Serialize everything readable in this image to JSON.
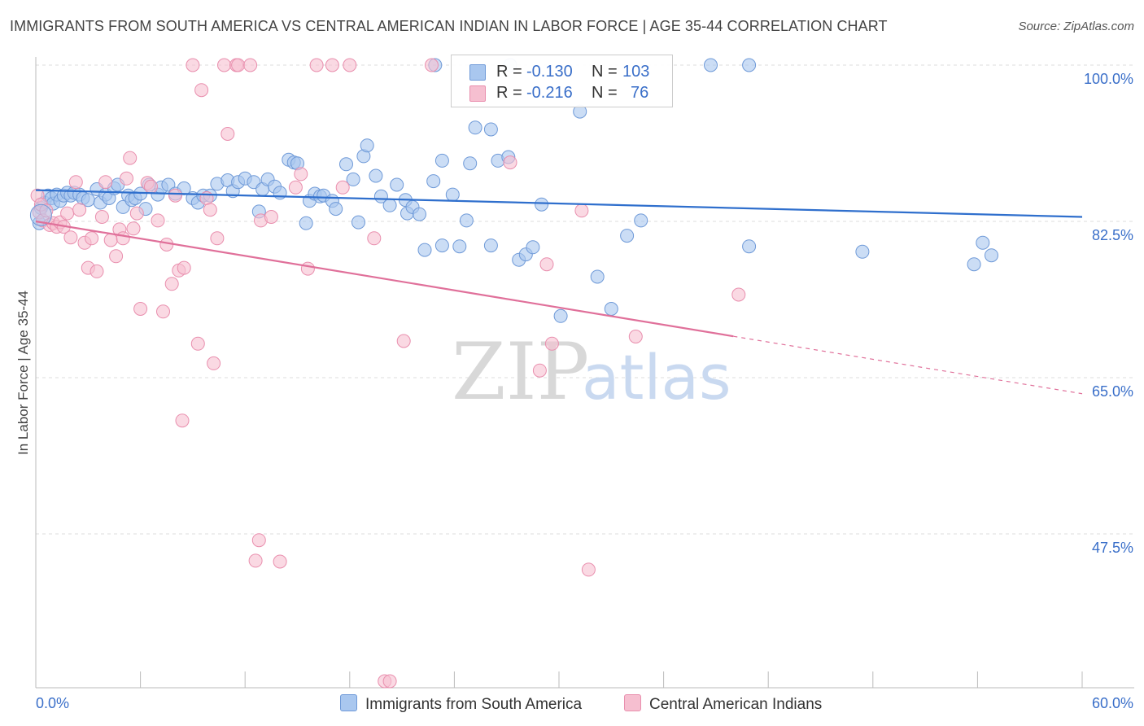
{
  "title": "IMMIGRANTS FROM SOUTH AMERICA VS CENTRAL AMERICAN INDIAN IN LABOR FORCE | AGE 35-44 CORRELATION CHART",
  "source": "Source: ZipAtlas.com",
  "legend": {
    "rows": [
      {
        "r_label": "R =",
        "r_value": "-0.130",
        "n_label": "N =",
        "n_value": "103"
      },
      {
        "r_label": "R =",
        "r_value": "-0.216",
        "n_label": "N =",
        "n_value": "76"
      }
    ]
  },
  "bottom_legend": [
    "Immigrants from South America",
    "Central American Indians"
  ],
  "colors": {
    "blue_fill": "#a9c7ef",
    "blue_stroke": "#6f9ad8",
    "blue_line": "#2f6fcd",
    "pink_fill": "#f6bfd0",
    "pink_stroke": "#e98fae",
    "pink_line": "#e0709a",
    "tick_text": "#3a6fc9",
    "grid": "#dddddd"
  },
  "chart_data": {
    "type": "scatter",
    "title": "IMMIGRANTS FROM SOUTH AMERICA VS CENTRAL AMERICAN INDIAN IN LABOR FORCE | AGE 35-44 CORRELATION CHART",
    "xlabel": "",
    "ylabel": "In Labor Force | Age 35-44",
    "xlim": [
      0,
      60
    ],
    "ylim": [
      29,
      101
    ],
    "x_tick_labels": [
      "0.0%",
      "60.0%"
    ],
    "y_ticks": [
      100,
      82.5,
      65,
      47.5
    ],
    "y_tick_labels": [
      "100.0%",
      "82.5%",
      "65.0%",
      "47.5%"
    ],
    "grid": true,
    "watermark": {
      "zip": "ZIP",
      "atlas": "atlas"
    },
    "series": [
      {
        "name": "Immigrants from South America",
        "r": -0.13,
        "n": 103,
        "trend": {
          "x0": 0,
          "y0": 86.0,
          "x1": 60,
          "y1": 83.0,
          "solid_to": 60
        },
        "points": [
          [
            0.2,
            82.3
          ],
          [
            0.3,
            84.0
          ],
          [
            0.5,
            84.6
          ],
          [
            0.7,
            85.4
          ],
          [
            0.9,
            85.1
          ],
          [
            1.0,
            84.5
          ],
          [
            1.2,
            85.5
          ],
          [
            1.4,
            84.8
          ],
          [
            1.6,
            85.4
          ],
          [
            1.8,
            85.7
          ],
          [
            2.0,
            85.4
          ],
          [
            2.2,
            85.7
          ],
          [
            2.5,
            85.5
          ],
          [
            2.7,
            85.1
          ],
          [
            3.0,
            84.9
          ],
          [
            3.5,
            86.1
          ],
          [
            3.7,
            84.6
          ],
          [
            4.0,
            85.5
          ],
          [
            4.2,
            85.1
          ],
          [
            4.5,
            86.2
          ],
          [
            4.7,
            86.6
          ],
          [
            5.0,
            84.1
          ],
          [
            5.3,
            85.4
          ],
          [
            5.5,
            84.9
          ],
          [
            5.7,
            85.1
          ],
          [
            6.0,
            85.6
          ],
          [
            6.3,
            83.9
          ],
          [
            6.5,
            86.6
          ],
          [
            7.0,
            85.5
          ],
          [
            7.2,
            86.3
          ],
          [
            7.6,
            86.6
          ],
          [
            8.0,
            85.6
          ],
          [
            8.5,
            86.2
          ],
          [
            9.0,
            85.1
          ],
          [
            9.3,
            84.6
          ],
          [
            9.6,
            85.4
          ],
          [
            10.0,
            85.4
          ],
          [
            10.4,
            86.7
          ],
          [
            11.0,
            87.1
          ],
          [
            11.3,
            85.9
          ],
          [
            11.6,
            86.9
          ],
          [
            12.0,
            87.3
          ],
          [
            12.5,
            86.9
          ],
          [
            12.8,
            83.6
          ],
          [
            13.0,
            86.1
          ],
          [
            13.3,
            87.2
          ],
          [
            13.7,
            86.4
          ],
          [
            14.0,
            85.7
          ],
          [
            14.5,
            89.4
          ],
          [
            14.8,
            89.1
          ],
          [
            15.0,
            89.0
          ],
          [
            15.5,
            82.3
          ],
          [
            15.7,
            84.8
          ],
          [
            16.0,
            85.6
          ],
          [
            16.3,
            85.3
          ],
          [
            16.5,
            85.4
          ],
          [
            17.0,
            84.8
          ],
          [
            17.2,
            83.9
          ],
          [
            17.8,
            88.9
          ],
          [
            18.2,
            87.2
          ],
          [
            18.5,
            82.4
          ],
          [
            18.8,
            89.8
          ],
          [
            19.0,
            91.0
          ],
          [
            19.5,
            87.6
          ],
          [
            19.8,
            85.3
          ],
          [
            20.3,
            84.3
          ],
          [
            20.7,
            86.6
          ],
          [
            21.2,
            84.9
          ],
          [
            21.3,
            83.4
          ],
          [
            21.6,
            84.1
          ],
          [
            22.0,
            83.3
          ],
          [
            22.3,
            79.3
          ],
          [
            22.8,
            87.0
          ],
          [
            22.9,
            100.0
          ],
          [
            23.3,
            79.8
          ],
          [
            23.3,
            89.3
          ],
          [
            23.9,
            85.5
          ],
          [
            24.3,
            79.7
          ],
          [
            24.7,
            82.6
          ],
          [
            24.9,
            89.0
          ],
          [
            25.2,
            93.0
          ],
          [
            26.1,
            92.8
          ],
          [
            26.1,
            79.8
          ],
          [
            26.5,
            89.3
          ],
          [
            27.1,
            89.7
          ],
          [
            27.2,
            100.0
          ],
          [
            27.7,
            78.2
          ],
          [
            28.1,
            78.8
          ],
          [
            28.5,
            79.6
          ],
          [
            29.0,
            84.4
          ],
          [
            30.1,
            71.9
          ],
          [
            31.2,
            94.8
          ],
          [
            32.2,
            76.3
          ],
          [
            33.0,
            72.7
          ],
          [
            33.9,
            80.9
          ],
          [
            34.7,
            82.6
          ],
          [
            38.7,
            100.0
          ],
          [
            40.9,
            100.0
          ],
          [
            40.9,
            79.7
          ],
          [
            47.4,
            79.1
          ],
          [
            53.8,
            77.7
          ],
          [
            54.3,
            80.1
          ],
          [
            54.8,
            78.7
          ]
        ]
      },
      {
        "name": "Central American Indians",
        "r": -0.216,
        "n": 76,
        "trend": {
          "x0": 0,
          "y0": 82.5,
          "x1": 60,
          "y1": 63.2,
          "solid_to": 40
        },
        "points": [
          [
            0.1,
            85.4
          ],
          [
            0.2,
            83.5
          ],
          [
            0.3,
            84.4
          ],
          [
            0.4,
            82.6
          ],
          [
            0.6,
            83.7
          ],
          [
            0.8,
            82.1
          ],
          [
            1.0,
            82.3
          ],
          [
            1.2,
            81.9
          ],
          [
            1.4,
            82.4
          ],
          [
            1.6,
            81.9
          ],
          [
            1.8,
            83.4
          ],
          [
            2.0,
            80.7
          ],
          [
            2.3,
            86.9
          ],
          [
            2.5,
            83.8
          ],
          [
            2.8,
            80.1
          ],
          [
            3.0,
            77.3
          ],
          [
            3.2,
            80.6
          ],
          [
            3.5,
            76.9
          ],
          [
            3.8,
            83.0
          ],
          [
            4.0,
            86.9
          ],
          [
            4.3,
            80.4
          ],
          [
            4.6,
            78.6
          ],
          [
            4.8,
            81.6
          ],
          [
            5.0,
            80.6
          ],
          [
            5.2,
            87.3
          ],
          [
            5.4,
            89.6
          ],
          [
            5.6,
            81.7
          ],
          [
            5.8,
            83.4
          ],
          [
            6.0,
            72.7
          ],
          [
            6.4,
            86.8
          ],
          [
            6.6,
            86.4
          ],
          [
            7.0,
            82.6
          ],
          [
            7.3,
            72.4
          ],
          [
            7.5,
            79.9
          ],
          [
            7.8,
            75.5
          ],
          [
            8.0,
            85.4
          ],
          [
            8.2,
            77.0
          ],
          [
            8.4,
            60.2
          ],
          [
            8.5,
            77.3
          ],
          [
            9.0,
            100.0
          ],
          [
            9.3,
            68.8
          ],
          [
            9.5,
            97.2
          ],
          [
            9.8,
            85.1
          ],
          [
            10.0,
            83.8
          ],
          [
            10.2,
            66.6
          ],
          [
            10.4,
            80.6
          ],
          [
            10.8,
            100.0
          ],
          [
            11.0,
            92.3
          ],
          [
            11.5,
            100.0
          ],
          [
            11.6,
            100.0
          ],
          [
            12.3,
            100.0
          ],
          [
            12.6,
            44.5
          ],
          [
            12.8,
            46.8
          ],
          [
            12.9,
            82.6
          ],
          [
            13.5,
            83.0
          ],
          [
            14.0,
            44.4
          ],
          [
            14.9,
            86.3
          ],
          [
            15.2,
            87.8
          ],
          [
            15.6,
            77.2
          ],
          [
            16.1,
            100.0
          ],
          [
            17.0,
            100.0
          ],
          [
            17.6,
            86.3
          ],
          [
            18.0,
            100.0
          ],
          [
            19.4,
            80.6
          ],
          [
            20.0,
            31.0
          ],
          [
            20.3,
            31.0
          ],
          [
            21.1,
            69.1
          ],
          [
            22.7,
            100.0
          ],
          [
            27.2,
            89.1
          ],
          [
            28.9,
            65.8
          ],
          [
            29.3,
            77.7
          ],
          [
            29.6,
            68.8
          ],
          [
            31.3,
            83.7
          ],
          [
            31.7,
            43.5
          ],
          [
            34.4,
            69.6
          ],
          [
            40.3,
            74.3
          ]
        ]
      }
    ]
  }
}
